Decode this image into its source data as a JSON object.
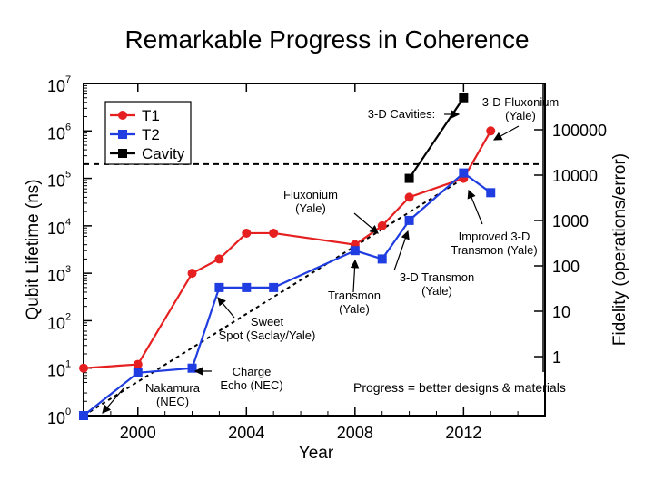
{
  "title": "Remarkable Progress in Coherence",
  "colors": {
    "t1": "#e62020",
    "t2": "#1f3de0",
    "cavity": "#000000",
    "background": "#ffffff"
  },
  "chart_data": {
    "type": "line",
    "title": "Remarkable Progress in Coherence",
    "xlabel": "Year",
    "ylabel": "Qubit Lifetime (ns)",
    "y2label": "Fidelity (operations/error)",
    "xlim": [
      1998,
      2015
    ],
    "ylim": [
      1,
      10000000
    ],
    "yscale": "log",
    "x_ticks": [
      "2000",
      "2004",
      "2008",
      "2012"
    ],
    "y_ticks": [
      {
        "base": "10",
        "exp": "0"
      },
      {
        "base": "10",
        "exp": "1"
      },
      {
        "base": "10",
        "exp": "2"
      },
      {
        "base": "10",
        "exp": "3"
      },
      {
        "base": "10",
        "exp": "4"
      },
      {
        "base": "10",
        "exp": "5"
      },
      {
        "base": "10",
        "exp": "6"
      },
      {
        "base": "10",
        "exp": "7"
      }
    ],
    "y2_ticks": [
      "1",
      "10",
      "100",
      "1000",
      "10000",
      "100000"
    ],
    "legend": {
      "placement": "top-left",
      "entries": [
        "T1",
        "T2",
        "Cavity"
      ]
    },
    "series": [
      {
        "name": "T1",
        "x": [
          1998,
          2000,
          2002,
          2003,
          2004,
          2005,
          2008,
          2009,
          2010,
          2012,
          2013
        ],
        "y": [
          10,
          12,
          1000,
          2000,
          7000,
          7000,
          4000,
          10000,
          40000,
          100000,
          1000000
        ]
      },
      {
        "name": "T2",
        "x": [
          1998,
          2000,
          2002,
          2003,
          2004,
          2005,
          2008,
          2009,
          2010,
          2012,
          2013
        ],
        "y": [
          1,
          8,
          10,
          500,
          500,
          500,
          3000,
          2000,
          13000,
          130000,
          50000
        ]
      },
      {
        "name": "Cavity",
        "x": [
          2010,
          2012
        ],
        "y": [
          100000,
          5000000
        ]
      }
    ],
    "trend_line": {
      "x": [
        1998,
        2012
      ],
      "y": [
        1,
        100000
      ]
    },
    "threshold_line": {
      "y": 200000
    },
    "annotations": {
      "fluxonium_3d": "3-D Fluxonium (Yale)",
      "cavities_3d": "3-D Cavities:",
      "fluxonium": "Fluxonium (Yale)",
      "improved": "Improved 3-D Transmon (Yale)",
      "transmon_3d": "3-D Transmon (Yale)",
      "transmon": "Transmon (Yale)",
      "sweet_spot": "Sweet Spot (Saclay/Yale)",
      "charge_echo": "Charge Echo (NEC)",
      "nakamura": "Nakamura (NEC)",
      "progress": "Progress = better designs & materials"
    }
  }
}
